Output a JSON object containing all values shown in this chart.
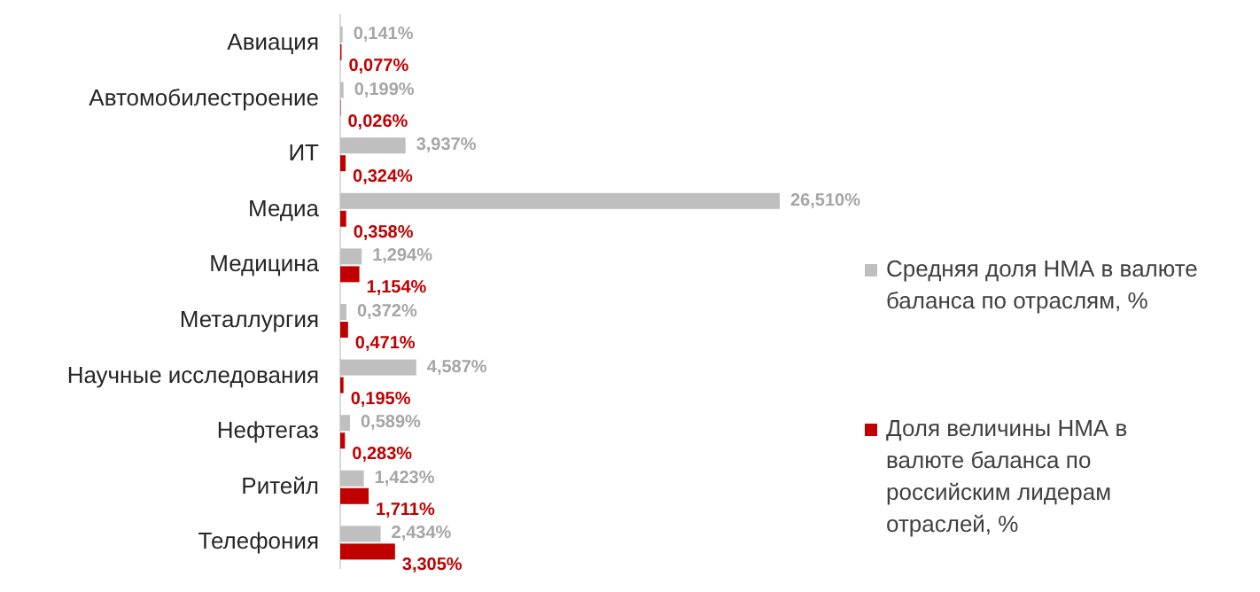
{
  "chart_data": {
    "type": "bar",
    "orientation": "horizontal",
    "categories": [
      "Авиация",
      "Автомобилестроение",
      "ИТ",
      "Медиа",
      "Медицина",
      "Металлургия",
      "Научные исследования",
      "Нефтегаз",
      "Ритейл",
      "Телефония"
    ],
    "series": [
      {
        "name": "Средняя доля НМА в валюте баланса по отраслям, %",
        "color": "#bfbfbf",
        "values": [
          0.141,
          0.199,
          3.937,
          26.51,
          1.294,
          0.372,
          4.587,
          0.589,
          1.423,
          2.434
        ],
        "value_labels": [
          "0,141%",
          "0,199%",
          "3,937%",
          "26,510%",
          "1,294%",
          "0,372%",
          "4,587%",
          "0,589%",
          "1,423%",
          "2,434%"
        ]
      },
      {
        "name": "Доля величины НМА в валюте баланса по российским лидерам отраслей, %",
        "color": "#c00000",
        "values": [
          0.077,
          0.026,
          0.324,
          0.358,
          1.154,
          0.471,
          0.195,
          0.283,
          1.711,
          3.305
        ],
        "value_labels": [
          "0,077%",
          "0,026%",
          "0,324%",
          "0,358%",
          "1,154%",
          "0,471%",
          "0,195%",
          "0,283%",
          "1,711%",
          "3,305%"
        ]
      }
    ],
    "legend": "right"
  }
}
